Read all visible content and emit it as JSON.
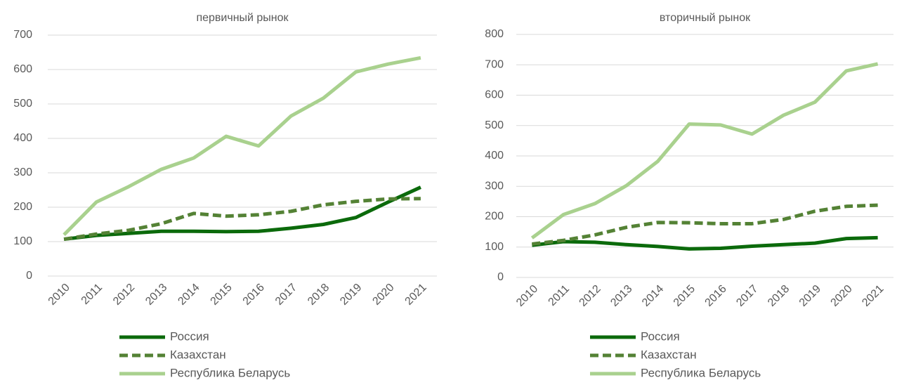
{
  "chart_data": [
    {
      "type": "line",
      "title": "первичный рынок",
      "categories": [
        "2010",
        "2011",
        "2012",
        "2013",
        "2014",
        "2015",
        "2016",
        "2017",
        "2018",
        "2019",
        "2020",
        "2021"
      ],
      "series": [
        {
          "name": "Россия",
          "color": "#0b6a0b",
          "dashed": false,
          "values": [
            107,
            118,
            124,
            130,
            130,
            129,
            130,
            139,
            150,
            170,
            215,
            258
          ]
        },
        {
          "name": "Казахстан",
          "color": "#548235",
          "dashed": true,
          "values": [
            107,
            122,
            133,
            152,
            182,
            174,
            178,
            188,
            207,
            217,
            224,
            225
          ]
        },
        {
          "name": "Республика Беларусь",
          "color": "#a9d18e",
          "dashed": false,
          "values": [
            120,
            215,
            260,
            310,
            343,
            406,
            378,
            465,
            517,
            593,
            616,
            634
          ]
        }
      ],
      "ylim": [
        0,
        700
      ],
      "yticks": [
        0,
        100,
        200,
        300,
        400,
        500,
        600,
        700
      ],
      "grid": true,
      "legend": "bottom"
    },
    {
      "type": "line",
      "title": "вторичный рынок",
      "categories": [
        "2010",
        "2011",
        "2012",
        "2013",
        "2014",
        "2015",
        "2016",
        "2017",
        "2018",
        "2019",
        "2020",
        "2021"
      ],
      "series": [
        {
          "name": "Россия",
          "color": "#0b6a0b",
          "dashed": false,
          "values": [
            106,
            118,
            116,
            108,
            102,
            94,
            96,
            103,
            108,
            113,
            128,
            131
          ]
        },
        {
          "name": "Казахстан",
          "color": "#548235",
          "dashed": true,
          "values": [
            110,
            122,
            140,
            165,
            181,
            180,
            177,
            177,
            191,
            218,
            234,
            238
          ]
        },
        {
          "name": "Республика Беларусь",
          "color": "#a9d18e",
          "dashed": false,
          "values": [
            130,
            207,
            243,
            302,
            382,
            505,
            502,
            472,
            534,
            577,
            680,
            703
          ]
        }
      ],
      "ylim": [
        0,
        800
      ],
      "yticks": [
        0,
        100,
        200,
        300,
        400,
        500,
        600,
        700,
        800
      ],
      "grid": true,
      "legend": "bottom"
    }
  ]
}
